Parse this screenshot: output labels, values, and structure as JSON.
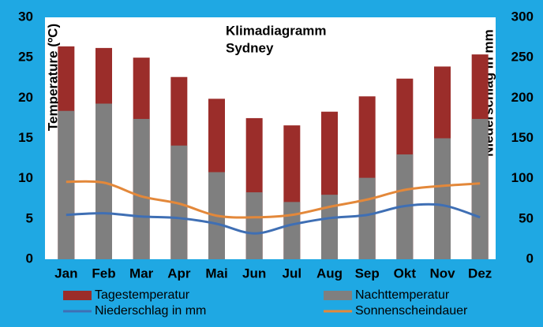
{
  "chart_data": {
    "type": "bar_line",
    "title": "Klimadiagramm",
    "subtitle": "Sydney",
    "y_label": "Temperature (ºC)",
    "y2_label": "Niederschlag in mm",
    "categories": [
      "Jan",
      "Feb",
      "Mar",
      "Apr",
      "Mai",
      "Jun",
      "Jul",
      "Aug",
      "Sep",
      "Okt",
      "Nov",
      "Dez"
    ],
    "ylim": [
      0,
      30
    ],
    "yticks": [
      0,
      5,
      10,
      15,
      20,
      25,
      30
    ],
    "y2lim": [
      0,
      300
    ],
    "y2ticks": [
      0,
      50,
      100,
      150,
      200,
      250,
      300
    ],
    "series": [
      {
        "name": "Tagestemperatur",
        "kind": "bar",
        "color": "#9b2d2a",
        "values": [
          26.4,
          26.2,
          25.0,
          22.6,
          19.9,
          17.5,
          16.6,
          18.3,
          20.2,
          22.4,
          23.9,
          25.4
        ]
      },
      {
        "name": "Nachttemperatur",
        "kind": "bar",
        "color": "#7f7f7f",
        "values": [
          18.4,
          19.3,
          17.4,
          14.1,
          10.8,
          8.3,
          7.1,
          8.0,
          10.1,
          13.0,
          15.0,
          17.4
        ]
      },
      {
        "name": "Niederschlag in mm",
        "kind": "line",
        "axis": "y2",
        "color": "#3f6fb4",
        "values": [
          55,
          57,
          53,
          51,
          44,
          32,
          43,
          51,
          55,
          66,
          67,
          52
        ]
      },
      {
        "name": "Sonnenscheindauer",
        "kind": "line",
        "color": "#e3883a",
        "values": [
          9.6,
          9.5,
          7.8,
          6.9,
          5.4,
          5.2,
          5.5,
          6.5,
          7.4,
          8.6,
          9.1,
          9.4
        ]
      }
    ]
  }
}
